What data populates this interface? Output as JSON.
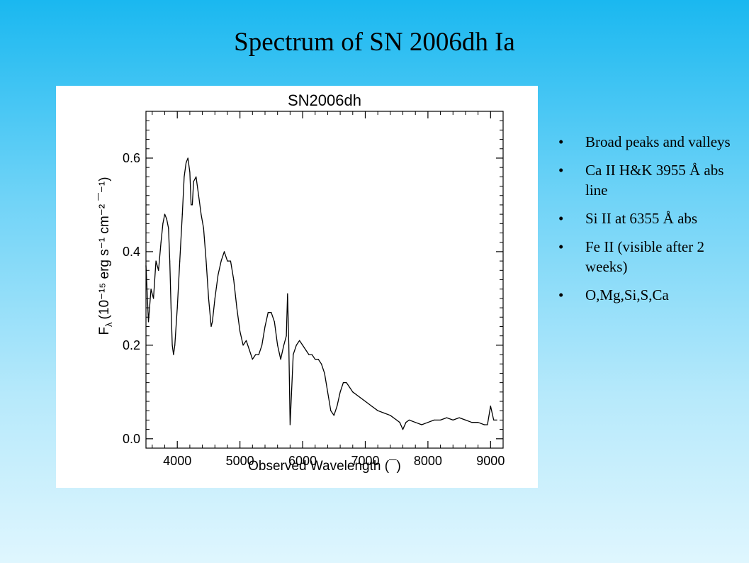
{
  "slide": {
    "title": "Spectrum of SN 2006dh Ia",
    "bullets": [
      "Broad peaks and valleys",
      "Ca II H&K 3955 Å abs line",
      "Si II at 6355 Å abs",
      "Fe II (visible after 2 weeks)",
      "O,Mg,Si,S,Ca"
    ],
    "bullet_glyph": "•"
  },
  "chart_data": {
    "type": "line",
    "title": "SN2006dh",
    "xlabel": "Observed Wavelength (¯)",
    "ylabel_prefix": "F",
    "ylabel_sub": "λ",
    "ylabel_units": "(10⁻¹⁵ erg s⁻¹ cm⁻² ¯⁻¹)",
    "xlim": [
      3500,
      9200
    ],
    "ylim": [
      -0.02,
      0.7
    ],
    "xticks": [
      4000,
      5000,
      6000,
      7000,
      8000,
      9000
    ],
    "yticks": [
      0.0,
      0.2,
      0.4,
      0.6
    ],
    "ytick_labels": [
      "0.0",
      "0.2",
      "0.4",
      "0.6"
    ],
    "grid": false,
    "series": [
      {
        "x": [
          3500,
          3540,
          3580,
          3620,
          3660,
          3700,
          3740,
          3770,
          3800,
          3830,
          3860,
          3880,
          3900,
          3920,
          3940,
          3960,
          4000,
          4040,
          4080,
          4110,
          4140,
          4170,
          4200,
          4220,
          4240,
          4260,
          4300,
          4340,
          4380,
          4420,
          4460,
          4500,
          4540,
          4560,
          4600,
          4650,
          4700,
          4750,
          4800,
          4850,
          4900,
          4950,
          5000,
          5050,
          5100,
          5150,
          5200,
          5250,
          5300,
          5350,
          5400,
          5450,
          5500,
          5550,
          5600,
          5650,
          5700,
          5740,
          5760,
          5780,
          5800,
          5850,
          5900,
          5950,
          6000,
          6050,
          6100,
          6150,
          6200,
          6250,
          6300,
          6350,
          6400,
          6450,
          6500,
          6550,
          6600,
          6650,
          6700,
          6750,
          6800,
          6900,
          7000,
          7100,
          7200,
          7300,
          7400,
          7500,
          7550,
          7600,
          7650,
          7700,
          7800,
          7900,
          8000,
          8100,
          8200,
          8300,
          8400,
          8500,
          8600,
          8700,
          8800,
          8900,
          8950,
          9000,
          9050,
          9100
        ],
        "y": [
          0.37,
          0.25,
          0.32,
          0.3,
          0.38,
          0.36,
          0.42,
          0.46,
          0.48,
          0.47,
          0.45,
          0.38,
          0.28,
          0.2,
          0.18,
          0.2,
          0.28,
          0.38,
          0.48,
          0.56,
          0.59,
          0.6,
          0.57,
          0.5,
          0.5,
          0.55,
          0.56,
          0.52,
          0.48,
          0.45,
          0.38,
          0.3,
          0.24,
          0.25,
          0.3,
          0.35,
          0.38,
          0.4,
          0.38,
          0.38,
          0.34,
          0.28,
          0.23,
          0.2,
          0.21,
          0.19,
          0.17,
          0.18,
          0.18,
          0.2,
          0.24,
          0.27,
          0.27,
          0.25,
          0.2,
          0.17,
          0.2,
          0.22,
          0.31,
          0.2,
          0.03,
          0.18,
          0.2,
          0.21,
          0.2,
          0.19,
          0.18,
          0.18,
          0.17,
          0.17,
          0.16,
          0.14,
          0.1,
          0.06,
          0.05,
          0.07,
          0.1,
          0.12,
          0.12,
          0.11,
          0.1,
          0.09,
          0.08,
          0.07,
          0.06,
          0.055,
          0.05,
          0.04,
          0.035,
          0.02,
          0.035,
          0.04,
          0.035,
          0.03,
          0.035,
          0.04,
          0.04,
          0.045,
          0.04,
          0.045,
          0.04,
          0.035,
          0.035,
          0.03,
          0.03,
          0.07,
          0.04,
          0.04
        ]
      }
    ]
  }
}
